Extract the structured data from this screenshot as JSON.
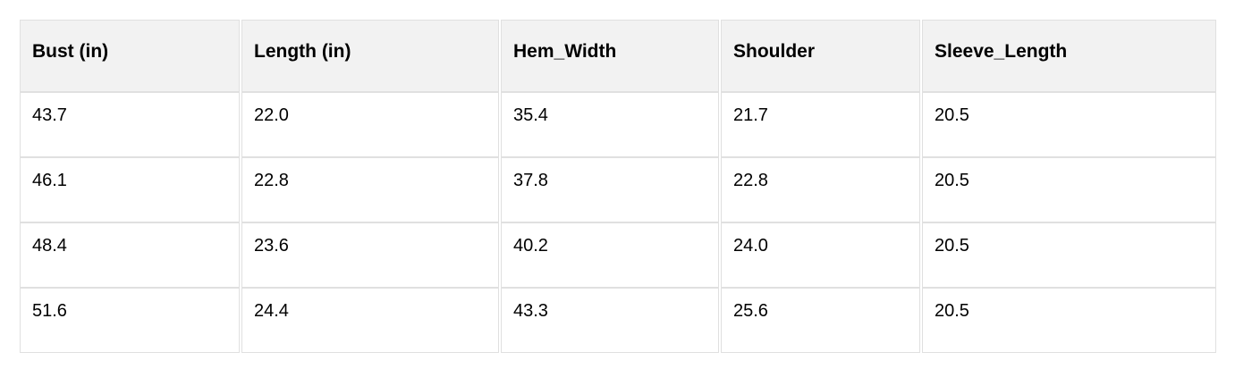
{
  "page": {
    "background": "#ffffff"
  },
  "table": {
    "description": "garment-measurement-size-table",
    "header_bg": "#f2f2f2",
    "border_color": "#e0e0e0",
    "text_color": "#000000",
    "columns": [
      "Bust (in)",
      "Length (in)",
      "Hem_Width",
      "Shoulder",
      "Sleeve_Length"
    ],
    "rows": [
      [
        "43.7",
        "22.0",
        "35.4",
        "21.7",
        "20.5"
      ],
      [
        "46.1",
        "22.8",
        "37.8",
        "22.8",
        "20.5"
      ],
      [
        "48.4",
        "23.6",
        "40.2",
        "24.0",
        "20.5"
      ],
      [
        "51.6",
        "24.4",
        "43.3",
        "25.6",
        "20.5"
      ]
    ]
  }
}
